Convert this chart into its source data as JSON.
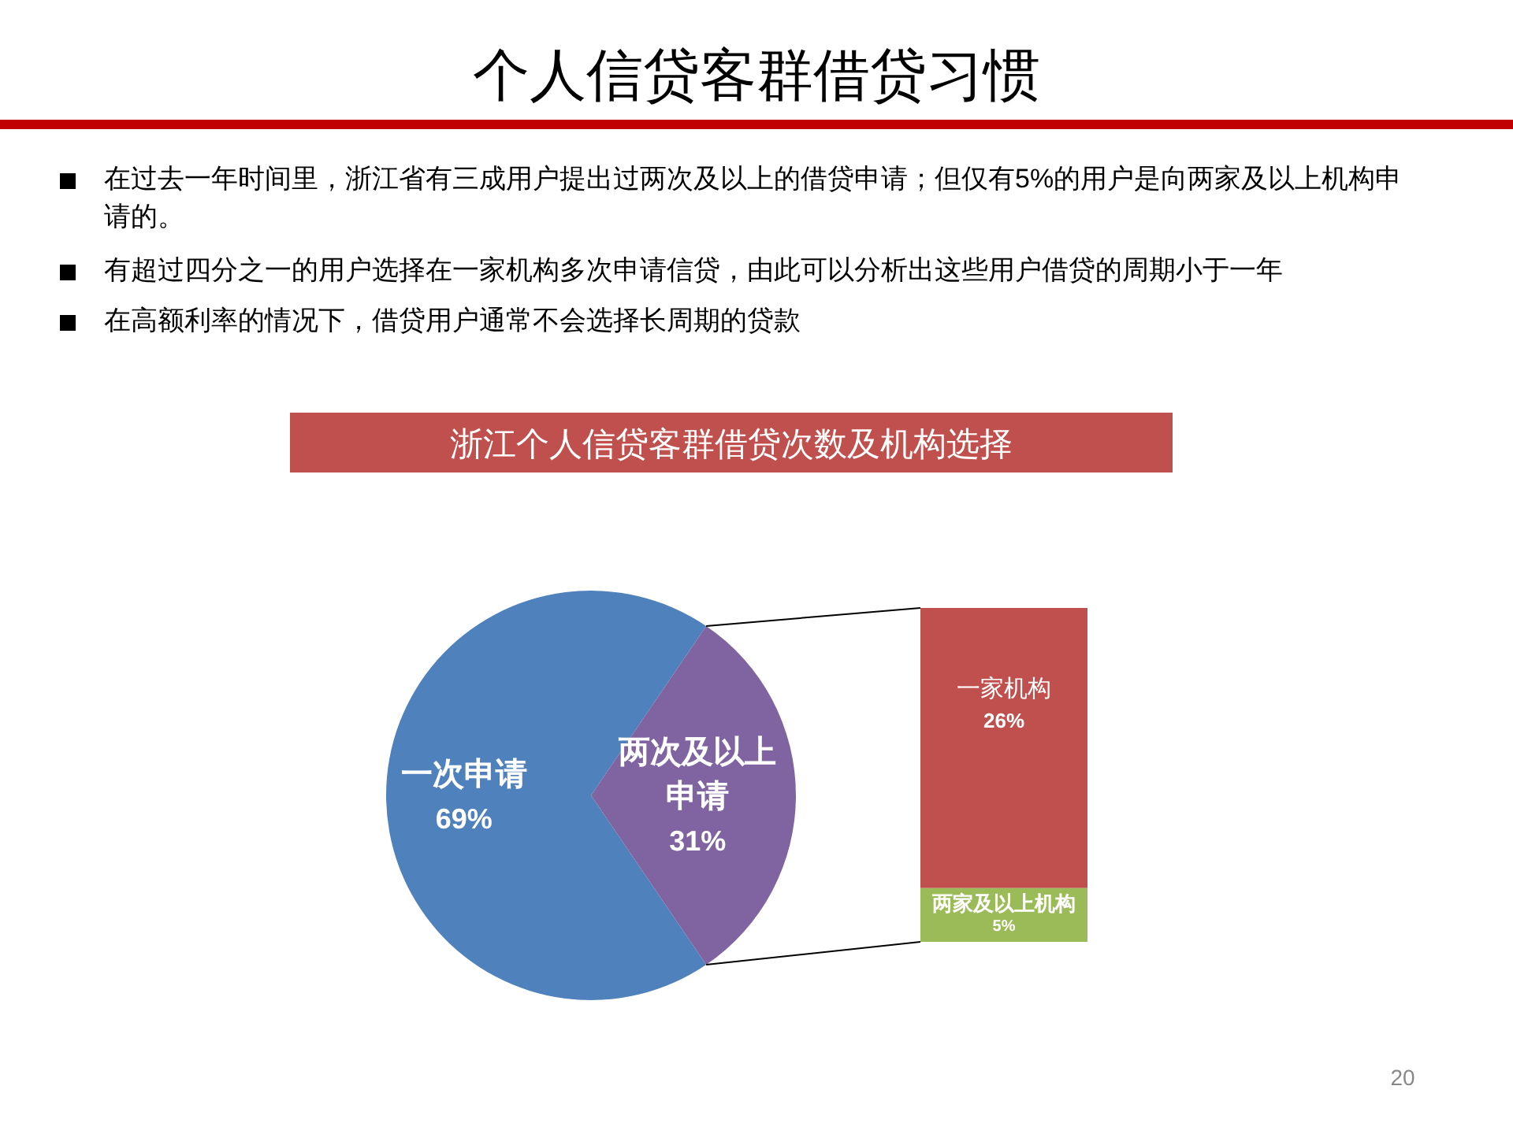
{
  "chart_data": [
    {
      "type": "pie",
      "title": "浙江个人信贷客群借贷次数及机构选择",
      "categories": [
        "一次申请",
        "两次及以上申请"
      ],
      "values": [
        69,
        31
      ],
      "colors": [
        "#4f81bd",
        "#8064a2"
      ],
      "value_labels": [
        "69%",
        "31%"
      ],
      "annotations": [
        "个人信贷客群借贷习惯",
        "在过去一年时间里，浙江省有三成用户提出过两次及以上的借贷申请；但仅有5%的用户是向两家及以上机构申请的。",
        "有超过四分之一的用户选择在一家机构多次申请信贷，由此可以分析出这些用户借贷的周期小于一年",
        "在高额利率的情况下，借贷用户通常不会选择长周期的贷款",
        "20"
      ]
    },
    {
      "type": "bar",
      "stacked": true,
      "categories": [
        null
      ],
      "series": [
        {
          "name": "两家及以上机构",
          "color": "#9bbb59",
          "values": [
            5
          ],
          "value_labels": [
            "5%"
          ]
        },
        {
          "name": "一家机构",
          "color": "#c0504d",
          "values": [
            26
          ],
          "value_labels": [
            "26%"
          ]
        }
      ]
    }
  ]
}
